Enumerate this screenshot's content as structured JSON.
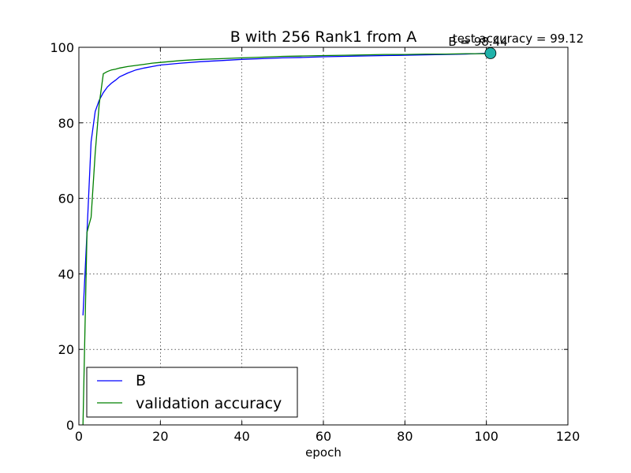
{
  "chart_data": {
    "type": "line",
    "title": "B with 256 Rank1 from A",
    "xlabel": "epoch",
    "ylabel": "",
    "xlim": [
      0,
      120
    ],
    "ylim": [
      0,
      100
    ],
    "xticks": [
      "0",
      "20",
      "40",
      "60",
      "80",
      "100",
      "120"
    ],
    "yticks": [
      "0",
      "20",
      "40",
      "60",
      "80",
      "100"
    ],
    "grid": true,
    "legend_position": "lower-left",
    "series": [
      {
        "name": "B",
        "color": "#0000ff",
        "x": [
          1,
          2,
          3,
          4,
          5,
          6,
          7,
          8,
          9,
          10,
          12,
          14,
          16,
          18,
          20,
          25,
          30,
          35,
          40,
          45,
          50,
          55,
          60,
          65,
          70,
          75,
          80,
          85,
          90,
          95,
          100
        ],
        "y": [
          29,
          51,
          75,
          83,
          86,
          88,
          89.5,
          90.5,
          91.3,
          92.2,
          93.2,
          94.0,
          94.5,
          94.9,
          95.3,
          95.8,
          96.2,
          96.5,
          96.8,
          97.0,
          97.2,
          97.3,
          97.5,
          97.6,
          97.7,
          97.8,
          97.9,
          98.0,
          98.1,
          98.2,
          98.44
        ]
      },
      {
        "name": "validation accuracy",
        "color": "#008000",
        "x": [
          1,
          2,
          3,
          4,
          5,
          6,
          7,
          8,
          9,
          10,
          12,
          14,
          16,
          18,
          20,
          25,
          30,
          35,
          40,
          45,
          50,
          55,
          60,
          65,
          70,
          75,
          80,
          85,
          90,
          95,
          100
        ],
        "y": [
          0,
          51,
          55,
          72,
          85,
          93,
          93.6,
          94.0,
          94.2,
          94.5,
          94.9,
          95.2,
          95.5,
          95.8,
          96.0,
          96.5,
          96.8,
          97.0,
          97.2,
          97.4,
          97.6,
          97.7,
          97.8,
          97.9,
          98.0,
          98.1,
          98.1,
          98.2,
          98.2,
          98.3,
          98.3
        ]
      }
    ],
    "marker": {
      "x": 101,
      "y": 98.44,
      "color": "#20b2aa"
    },
    "annotations": [
      "B = 98.44",
      "test accuracy = 99.12"
    ]
  }
}
